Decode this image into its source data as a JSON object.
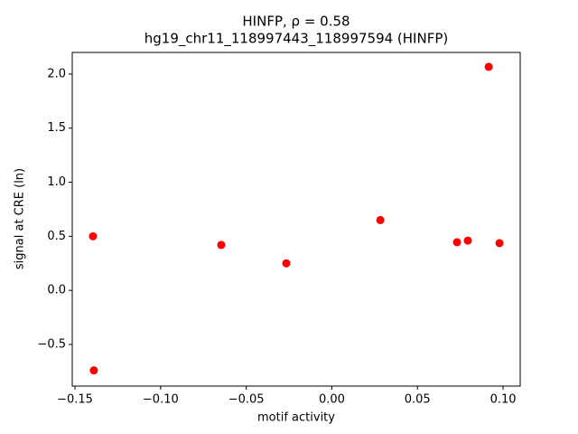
{
  "chart_data": {
    "type": "scatter",
    "title": "HINFP, ρ = 0.58",
    "subtitle": "hg19_chr11_118997443_118997594 (HINFP)",
    "x_label": "motif activity",
    "y_label": "signal at CRE (ln)",
    "color": "#ff0000",
    "x": [
      -0.1395,
      -0.139,
      -0.0646,
      -0.0266,
      0.0283,
      0.0731,
      0.0794,
      0.0916,
      0.0979
    ],
    "values": [
      0.5,
      -0.74,
      0.42,
      0.25,
      0.65,
      0.445,
      0.46,
      2.067,
      0.437
    ],
    "xlim": [
      -0.1516,
      0.11
    ],
    "ylim": [
      -0.885,
      2.2
    ],
    "xticks": [
      {
        "value": -0.15,
        "label": "−0.15"
      },
      {
        "value": -0.1,
        "label": "−0.10"
      },
      {
        "value": -0.05,
        "label": "−0.05"
      },
      {
        "value": 0,
        "label": "0.00"
      },
      0.05,
      {
        "value": 0.1,
        "label": "0.10"
      }
    ],
    "yticks": [
      {
        "value": -0.5,
        "label": "−0.5"
      },
      {
        "value": 0,
        "label": "0.0"
      },
      0.5,
      {
        "value": 1,
        "label": "1.0"
      },
      1.5,
      {
        "value": 2,
        "label": "2.0"
      }
    ],
    "grid": false
  }
}
